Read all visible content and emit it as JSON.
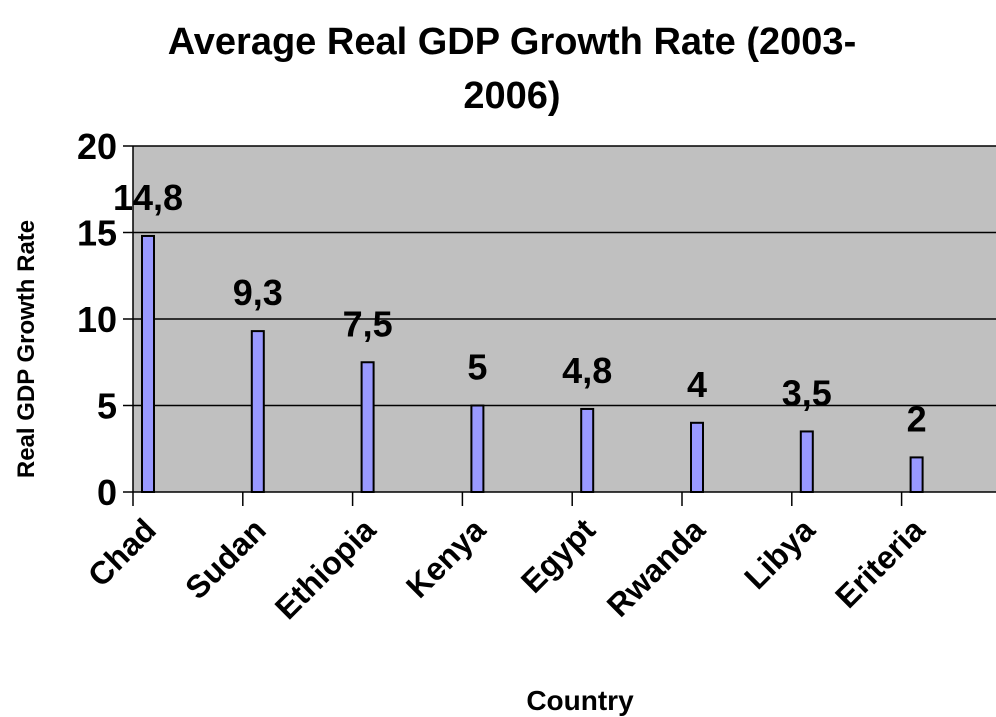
{
  "chart_data": {
    "type": "bar",
    "title_line1": "Average Real GDP Growth Rate (2003-",
    "title_line2": "2006)",
    "xlabel": "Country",
    "ylabel": "Real GDP Growth Rate",
    "categories": [
      "Chad",
      "Sudan",
      "Ethiopia",
      "Kenya",
      "Egypt",
      "Rwanda",
      "Libya",
      "Eriteria"
    ],
    "values": [
      14.8,
      9.3,
      7.5,
      5,
      4.8,
      4,
      3.5,
      2
    ],
    "value_labels": [
      "14,8",
      "9,3",
      "7,5",
      "5",
      "4,8",
      "4",
      "3,5",
      "2"
    ],
    "ylim": [
      0,
      20
    ],
    "yticks": [
      "0",
      "5",
      "10",
      "15",
      "20"
    ],
    "ytick_values": [
      0,
      5,
      10,
      15,
      20
    ],
    "grid": true,
    "legend": "none",
    "colors": {
      "bar_fill": "#9999ff",
      "bar_stroke": "#000000",
      "plot_background": "#c0c0c0",
      "gridline": "#000000"
    }
  }
}
